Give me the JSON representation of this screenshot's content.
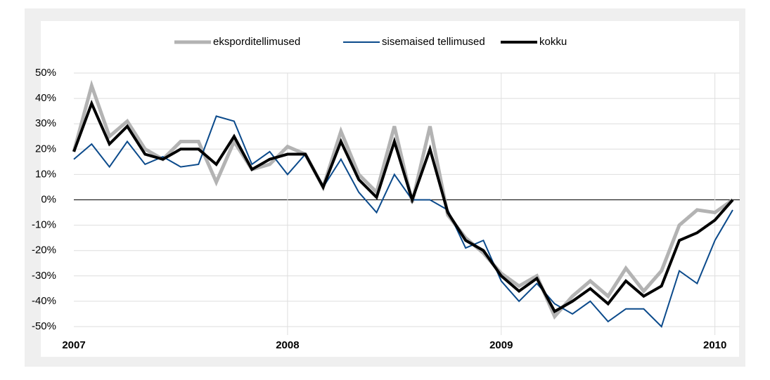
{
  "chart_data": {
    "type": "line",
    "categories": [
      "2007",
      null,
      null,
      null,
      null,
      null,
      null,
      null,
      null,
      null,
      null,
      null,
      "2008",
      null,
      null,
      null,
      null,
      null,
      null,
      null,
      null,
      null,
      null,
      null,
      "2009",
      null,
      null,
      null,
      null,
      null,
      null,
      null,
      null,
      null,
      null,
      null,
      "2010",
      null
    ],
    "series": [
      {
        "name": "eksporditellimused",
        "color": "#b3b3b3",
        "width": 5,
        "values": [
          19,
          45,
          25,
          31,
          20,
          16,
          23,
          23,
          7,
          23,
          12,
          14,
          21,
          18,
          5,
          27,
          10,
          3,
          29,
          -1,
          29,
          -6,
          -15,
          -21,
          -29,
          -34,
          -30,
          -46,
          -38,
          -32,
          -38,
          -27,
          -36,
          -28,
          -10,
          -4,
          -5,
          0
        ]
      },
      {
        "name": "sisemaised tellimused",
        "color": "#0b4a8b",
        "width": 2,
        "values": [
          16,
          22,
          13,
          23,
          14,
          17,
          13,
          14,
          33,
          31,
          14,
          19,
          10,
          18,
          5,
          16,
          3,
          -5,
          10,
          0,
          0,
          -4,
          -19,
          -16,
          -32,
          -40,
          -33,
          -41,
          -45,
          -40,
          -48,
          -43,
          -43,
          -50,
          -28,
          -33,
          -16,
          -4
        ]
      },
      {
        "name": "kokku",
        "color": "#000000",
        "width": 4,
        "values": [
          19,
          38,
          22,
          29,
          18,
          16,
          20,
          20,
          14,
          25,
          12,
          16,
          18,
          18,
          5,
          23,
          8,
          1,
          23,
          0,
          20,
          -5,
          -16,
          -20,
          -30,
          -36,
          -31,
          -44,
          -40,
          -35,
          -41,
          -32,
          -38,
          -34,
          -16,
          -13,
          -8,
          0
        ]
      }
    ],
    "ylim": [
      -50,
      50
    ],
    "yticks": [
      {
        "value": -50,
        "label": "-50%"
      },
      {
        "value": -40,
        "label": "-40%"
      },
      {
        "value": -30,
        "label": "-30%"
      },
      {
        "value": -20,
        "label": "-20%"
      },
      {
        "value": -10,
        "label": "-10%"
      },
      {
        "value": 0,
        "label": "0%"
      },
      {
        "value": 10,
        "label": "10%"
      },
      {
        "value": 20,
        "label": "20%"
      },
      {
        "value": 30,
        "label": "30%"
      },
      {
        "value": 40,
        "label": "40%"
      },
      {
        "value": 50,
        "label": "50%"
      }
    ],
    "grid": true,
    "legend": "top"
  }
}
